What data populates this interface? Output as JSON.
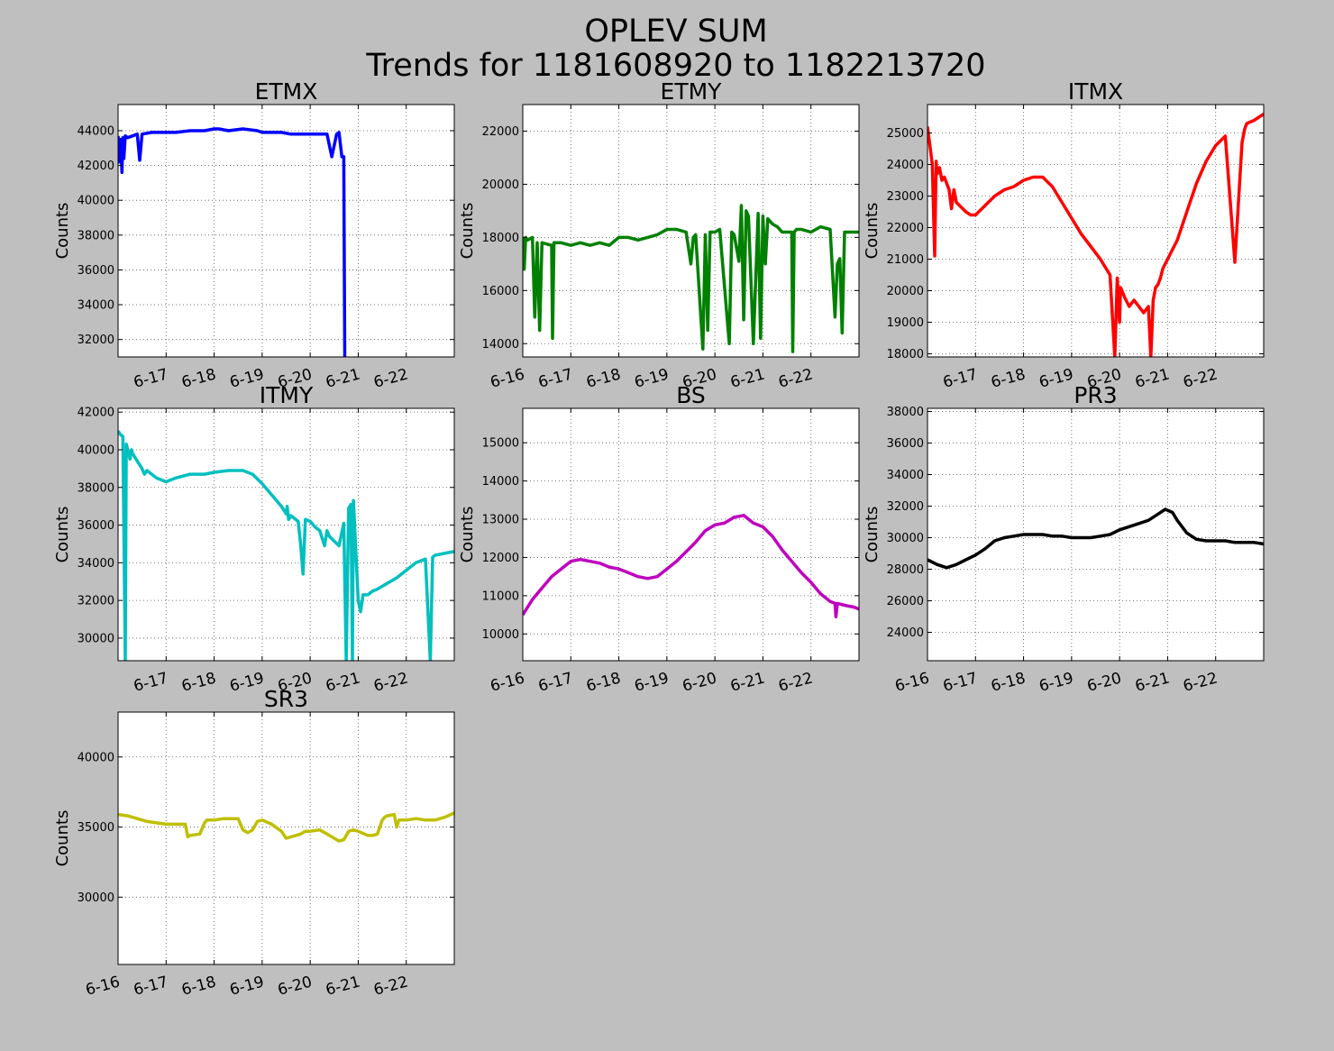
{
  "figure": {
    "title_line1": "OPLEV SUM",
    "title_line2": "Trends for 1181608920 to 1182213720",
    "background": "#bfbfbf"
  },
  "chart_data": [
    {
      "type": "line",
      "title": "ETMX",
      "ylabel": "Counts",
      "color": "#0000ff",
      "xlim": [
        16.0,
        23.0
      ],
      "ylim": [
        31000,
        45500
      ],
      "yticks": [
        32000,
        34000,
        36000,
        38000,
        40000,
        42000,
        44000
      ],
      "xticks": [
        17,
        18,
        19,
        20,
        21,
        22
      ],
      "xticklabels": [
        "6-17",
        "6-18",
        "6-19",
        "6-20",
        "6-21",
        "6-22"
      ],
      "grid": true,
      "x": [
        16.0,
        16.02,
        16.05,
        16.08,
        16.1,
        16.12,
        16.15,
        16.2,
        16.3,
        16.4,
        16.45,
        16.5,
        16.7,
        16.9,
        17.0,
        17.2,
        17.5,
        17.8,
        18.0,
        18.1,
        18.3,
        18.6,
        18.9,
        19.0,
        19.2,
        19.4,
        19.6,
        19.8,
        20.0,
        20.2,
        20.35,
        20.45,
        20.55,
        20.6,
        20.66,
        20.7,
        20.72
      ],
      "y": [
        43700,
        42200,
        43500,
        41600,
        43600,
        42400,
        43700,
        43600,
        43700,
        43800,
        42300,
        43800,
        43900,
        43900,
        43900,
        43900,
        44000,
        44000,
        44100,
        44100,
        44000,
        44100,
        44000,
        43900,
        43900,
        43900,
        43800,
        43800,
        43800,
        43800,
        43800,
        42500,
        43800,
        43900,
        42500,
        42500,
        31000
      ]
    },
    {
      "type": "line",
      "title": "ETMY",
      "ylabel": "Counts",
      "color": "#008000",
      "xlim": [
        16.0,
        23.0
      ],
      "ylim": [
        13500,
        23000
      ],
      "yticks": [
        14000,
        16000,
        18000,
        20000,
        22000
      ],
      "xticks": [
        16,
        17,
        18,
        19,
        20,
        21,
        22
      ],
      "xticklabels": [
        "6-16",
        "6-17",
        "6-18",
        "6-19",
        "6-20",
        "6-21",
        "6-22"
      ],
      "grid": true,
      "x": [
        16.0,
        16.03,
        16.06,
        16.1,
        16.2,
        16.25,
        16.3,
        16.35,
        16.4,
        16.6,
        16.62,
        16.65,
        16.8,
        17.0,
        17.2,
        17.4,
        17.6,
        17.8,
        18.0,
        18.2,
        18.4,
        18.6,
        18.8,
        18.9,
        19.0,
        19.2,
        19.4,
        19.5,
        19.55,
        19.6,
        19.75,
        19.8,
        19.85,
        19.9,
        20.0,
        20.1,
        20.3,
        20.35,
        20.4,
        20.5,
        20.55,
        20.6,
        20.65,
        20.7,
        20.8,
        20.9,
        20.95,
        21.0,
        21.05,
        21.1,
        21.2,
        21.3,
        21.4,
        21.6,
        21.62,
        21.65,
        21.7,
        21.8,
        22.0,
        22.2,
        22.4,
        22.5,
        22.55,
        22.6,
        22.65,
        22.7,
        22.8,
        23.0
      ],
      "y": [
        18000,
        16800,
        18000,
        17900,
        18000,
        15000,
        17800,
        14500,
        17800,
        17700,
        14200,
        17800,
        17800,
        17700,
        17800,
        17700,
        17800,
        17700,
        18000,
        18000,
        17900,
        18000,
        18100,
        18200,
        18300,
        18300,
        18200,
        17000,
        18000,
        18100,
        13800,
        18100,
        14500,
        18200,
        18200,
        18300,
        14000,
        18200,
        18100,
        17100,
        19200,
        14900,
        19000,
        18800,
        14000,
        18900,
        14200,
        18800,
        17000,
        18700,
        18500,
        18400,
        18200,
        18200,
        13700,
        18200,
        18300,
        18300,
        18200,
        18400,
        18300,
        15000,
        17000,
        17200,
        14400,
        18200,
        18200,
        18200
      ]
    },
    {
      "type": "line",
      "title": "ITMX",
      "ylabel": "Counts",
      "color": "#ff0000",
      "xlim": [
        16.0,
        23.0
      ],
      "ylim": [
        17900,
        25900
      ],
      "yticks": [
        18000,
        19000,
        20000,
        21000,
        22000,
        23000,
        24000,
        25000
      ],
      "xticks": [
        17,
        18,
        19,
        20,
        21,
        22
      ],
      "xticklabels": [
        "6-17",
        "6-18",
        "6-19",
        "6-20",
        "6-21",
        "6-22"
      ],
      "grid": true,
      "x": [
        16.0,
        16.05,
        16.1,
        16.15,
        16.18,
        16.2,
        16.25,
        16.3,
        16.35,
        16.45,
        16.5,
        16.55,
        16.6,
        16.8,
        16.9,
        17.0,
        17.2,
        17.4,
        17.6,
        17.8,
        18.0,
        18.2,
        18.4,
        18.6,
        18.8,
        19.0,
        19.2,
        19.4,
        19.6,
        19.8,
        19.9,
        19.95,
        20.0,
        20.02,
        20.05,
        20.1,
        20.2,
        20.3,
        20.4,
        20.5,
        20.6,
        20.65,
        20.7,
        20.75,
        20.8,
        20.85,
        20.9,
        21.0,
        21.2,
        21.4,
        21.6,
        21.8,
        22.0,
        22.2,
        22.4,
        22.55,
        22.6,
        22.62,
        22.65,
        22.8,
        23.0
      ],
      "y": [
        25200,
        24600,
        24000,
        21100,
        24100,
        23700,
        23900,
        23500,
        23600,
        23200,
        22600,
        23200,
        22800,
        22500,
        22400,
        22400,
        22700,
        23000,
        23200,
        23300,
        23500,
        23600,
        23600,
        23300,
        22800,
        22300,
        21800,
        21400,
        21000,
        20500,
        17900,
        20400,
        19000,
        20100,
        20000,
        19800,
        19500,
        19700,
        19500,
        19300,
        19500,
        17900,
        19700,
        20100,
        20200,
        20400,
        20700,
        21000,
        21600,
        22500,
        23400,
        24100,
        24600,
        24900,
        20900,
        24700,
        25100,
        25200,
        25300,
        25400,
        25600
      ]
    },
    {
      "type": "line",
      "title": "ITMY",
      "ylabel": "Counts",
      "color": "#00bfbf",
      "xlim": [
        16.0,
        23.0
      ],
      "ylim": [
        28800,
        42200
      ],
      "yticks": [
        30000,
        32000,
        34000,
        36000,
        38000,
        40000,
        42000
      ],
      "xticks": [
        17,
        18,
        19,
        20,
        21,
        22
      ],
      "xticklabels": [
        "6-17",
        "6-18",
        "6-19",
        "6-20",
        "6-21",
        "6-22"
      ],
      "grid": true,
      "x": [
        16.0,
        16.05,
        16.1,
        16.15,
        16.17,
        16.2,
        16.25,
        16.28,
        16.3,
        16.5,
        16.55,
        16.6,
        16.8,
        17.0,
        17.2,
        17.5,
        17.8,
        18.0,
        18.3,
        18.6,
        18.8,
        19.0,
        19.2,
        19.4,
        19.5,
        19.52,
        19.55,
        19.6,
        19.75,
        19.8,
        19.85,
        19.9,
        20.0,
        20.1,
        20.2,
        20.3,
        20.35,
        20.4,
        20.6,
        20.7,
        20.75,
        20.8,
        20.85,
        20.88,
        20.9,
        21.0,
        21.05,
        21.1,
        21.2,
        21.3,
        21.4,
        21.6,
        21.8,
        22.0,
        22.2,
        22.4,
        22.5,
        22.55,
        22.6,
        22.8,
        23.0
      ],
      "y": [
        41000,
        40800,
        40700,
        28800,
        40300,
        40000,
        39500,
        40000,
        39800,
        39000,
        38700,
        38900,
        38500,
        38300,
        38500,
        38700,
        38700,
        38800,
        38900,
        38900,
        38700,
        38200,
        37600,
        37000,
        36600,
        37000,
        36300,
        36500,
        36200,
        35000,
        33400,
        36300,
        36200,
        35900,
        35700,
        34900,
        35700,
        35400,
        34900,
        36100,
        28800,
        36900,
        37100,
        28800,
        37300,
        32000,
        31400,
        32300,
        32300,
        32500,
        32600,
        32900,
        33200,
        33600,
        34000,
        34200,
        28800,
        34300,
        34400,
        34500,
        34600
      ]
    },
    {
      "type": "line",
      "title": "BS",
      "ylabel": "Counts",
      "color": "#bf00bf",
      "xlim": [
        16.0,
        23.0
      ],
      "ylim": [
        9300,
        15900
      ],
      "yticks": [
        10000,
        11000,
        12000,
        13000,
        14000,
        15000
      ],
      "xticks": [
        16,
        17,
        18,
        19,
        20,
        21,
        22
      ],
      "xticklabels": [
        "6-16",
        "6-17",
        "6-18",
        "6-19",
        "6-20",
        "6-21",
        "6-22"
      ],
      "grid": true,
      "x": [
        16.0,
        16.2,
        16.4,
        16.6,
        16.8,
        17.0,
        17.2,
        17.4,
        17.6,
        17.8,
        18.0,
        18.2,
        18.4,
        18.6,
        18.8,
        19.0,
        19.2,
        19.4,
        19.6,
        19.8,
        20.0,
        20.2,
        20.4,
        20.6,
        20.8,
        21.0,
        21.2,
        21.4,
        21.6,
        21.8,
        22.0,
        22.2,
        22.4,
        22.5,
        22.52,
        22.55,
        22.7,
        22.9,
        23.0
      ],
      "y": [
        10500,
        10900,
        11200,
        11500,
        11700,
        11900,
        11950,
        11900,
        11850,
        11750,
        11700,
        11600,
        11500,
        11450,
        11500,
        11700,
        11900,
        12150,
        12400,
        12700,
        12850,
        12900,
        13050,
        13100,
        12900,
        12800,
        12550,
        12200,
        11900,
        11600,
        11350,
        11050,
        10850,
        10800,
        10450,
        10800,
        10750,
        10700,
        10650
      ]
    },
    {
      "type": "line",
      "title": "PR3",
      "ylabel": "Counts",
      "color": "#000000",
      "xlim": [
        16.0,
        23.0
      ],
      "ylim": [
        22200,
        38200
      ],
      "yticks": [
        24000,
        26000,
        28000,
        30000,
        32000,
        34000,
        36000,
        38000
      ],
      "xticks": [
        16,
        17,
        18,
        19,
        20,
        21,
        22
      ],
      "xticklabels": [
        "6-16",
        "6-17",
        "6-18",
        "6-19",
        "6-20",
        "6-21",
        "6-22"
      ],
      "grid": true,
      "x": [
        16.0,
        16.2,
        16.4,
        16.6,
        16.8,
        17.0,
        17.2,
        17.4,
        17.6,
        17.8,
        18.0,
        18.2,
        18.4,
        18.6,
        18.8,
        19.0,
        19.2,
        19.4,
        19.6,
        19.8,
        20.0,
        20.2,
        20.4,
        20.6,
        20.8,
        20.95,
        21.1,
        21.2,
        21.4,
        21.6,
        21.8,
        22.0,
        22.2,
        22.4,
        22.6,
        22.8,
        23.0
      ],
      "y": [
        28600,
        28300,
        28100,
        28300,
        28600,
        28900,
        29300,
        29800,
        30000,
        30100,
        30200,
        30200,
        30200,
        30100,
        30100,
        30000,
        30000,
        30000,
        30100,
        30200,
        30500,
        30700,
        30900,
        31100,
        31500,
        31800,
        31600,
        31100,
        30300,
        29900,
        29800,
        29800,
        29800,
        29700,
        29700,
        29700,
        29600
      ]
    },
    {
      "type": "line",
      "title": "SR3",
      "ylabel": "Counts",
      "color": "#bfbf00",
      "xlim": [
        16.0,
        23.0
      ],
      "ylim": [
        25200,
        43200
      ],
      "yticks": [
        30000,
        35000,
        40000
      ],
      "xticks": [
        16,
        17,
        18,
        19,
        20,
        21,
        22
      ],
      "xticklabels": [
        "6-16",
        "6-17",
        "6-18",
        "6-19",
        "6-20",
        "6-21",
        "6-22"
      ],
      "grid": true,
      "x": [
        16.0,
        16.2,
        16.4,
        16.6,
        16.8,
        17.0,
        17.2,
        17.4,
        17.45,
        17.5,
        17.7,
        17.8,
        17.85,
        18.0,
        18.2,
        18.5,
        18.6,
        18.7,
        18.8,
        18.9,
        19.0,
        19.2,
        19.4,
        19.5,
        19.6,
        19.8,
        19.9,
        20.0,
        20.2,
        20.4,
        20.5,
        20.6,
        20.7,
        20.8,
        20.9,
        21.0,
        21.2,
        21.3,
        21.4,
        21.5,
        21.55,
        21.6,
        21.75,
        21.8,
        21.85,
        22.0,
        22.2,
        22.4,
        22.6,
        22.8,
        23.0
      ],
      "y": [
        35900,
        35800,
        35600,
        35400,
        35300,
        35200,
        35200,
        35200,
        34300,
        34400,
        34500,
        35300,
        35500,
        35500,
        35600,
        35600,
        34800,
        34600,
        34800,
        35400,
        35500,
        35200,
        34700,
        34200,
        34300,
        34500,
        34700,
        34700,
        34800,
        34400,
        34200,
        34000,
        34100,
        34700,
        34800,
        34700,
        34400,
        34400,
        34500,
        35500,
        35700,
        35800,
        35900,
        35000,
        35500,
        35500,
        35600,
        35500,
        35500,
        35700,
        36000
      ]
    }
  ]
}
